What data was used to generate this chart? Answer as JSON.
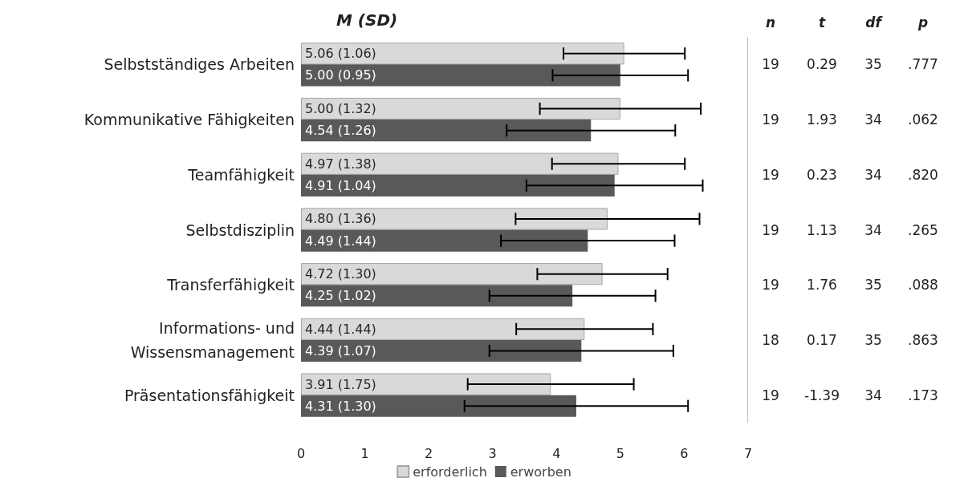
{
  "chart_data": {
    "type": "bar",
    "orientation": "horizontal",
    "title": "M (SD)",
    "categories": [
      "Selbstständiges Arbeiten",
      "Kommunikative Fähigkeiten",
      "Teamfähigkeit",
      "Selbstdisziplin",
      "Transferfähigkeit",
      "Informations- und\nWissensmanagement",
      "Präsentationsfähigkeit"
    ],
    "series": [
      {
        "name": "erforderlich",
        "color": "#d9d9d9",
        "values": [
          5.06,
          5.0,
          4.97,
          4.8,
          4.72,
          4.44,
          3.91
        ],
        "errors": [
          0.95,
          1.26,
          1.04,
          1.44,
          1.02,
          1.07,
          1.3
        ],
        "value_labels": [
          "5.06 (1.06)",
          "5.00 (1.32)",
          "4.97 (1.38)",
          "4.80 (1.36)",
          "4.72 (1.30)",
          "4.44 (1.44)",
          "3.91 (1.75)"
        ]
      },
      {
        "name": "erworben",
        "color": "#595959",
        "values": [
          5.0,
          4.54,
          4.91,
          4.49,
          4.25,
          4.39,
          4.31
        ],
        "errors": [
          1.06,
          1.32,
          1.38,
          1.36,
          1.3,
          1.44,
          1.75
        ],
        "value_labels": [
          "5.00 (0.95)",
          "4.54 (1.26)",
          "4.91 (1.04)",
          "4.49 (1.44)",
          "4.25 (1.02)",
          "4.39 (1.07)",
          "4.31 (1.30)"
        ]
      }
    ],
    "xlim": [
      0,
      7
    ],
    "xticks": [
      0,
      1,
      2,
      3,
      4,
      5,
      6,
      7
    ],
    "grid": false,
    "legend": "bottom",
    "annotations": [
      "n t df p",
      "19 0.29 35 .777",
      "19 1.93 34 .062",
      "19 0.23 34 .820",
      "19 1.13 34 .265",
      "19 1.76 35 .088",
      "18 0.17 35 .863",
      "19 -1.39 34 .173"
    ]
  }
}
